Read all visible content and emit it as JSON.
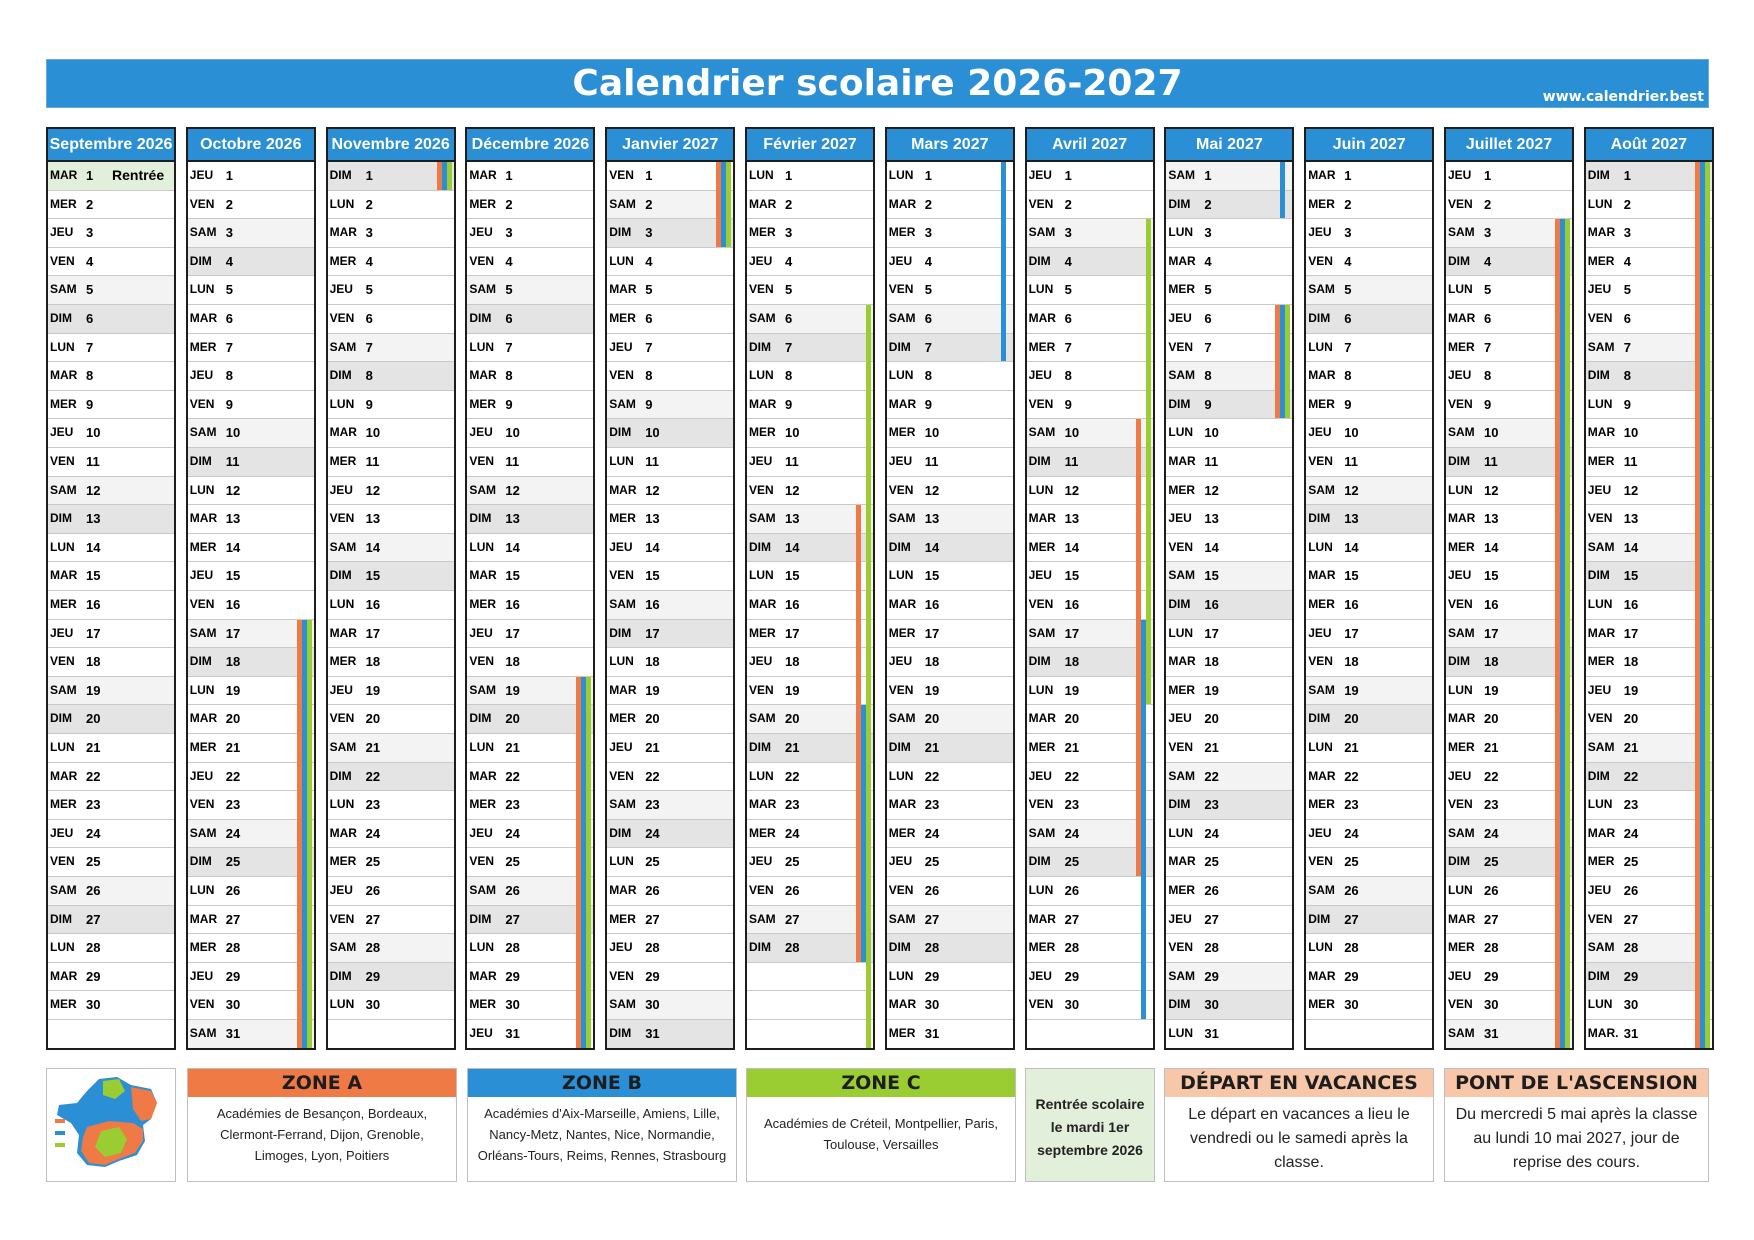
{
  "header": {
    "title": "Calendrier scolaire 2026-2027",
    "website": "www.calendrier.best"
  },
  "colors": {
    "zone_a": "#ef7a45",
    "zone_b": "#2a8fd5",
    "zone_c": "#9acd32",
    "header": "#2a8fd5",
    "vacances": "#f8c6a8",
    "rentree": "#e2efda"
  },
  "months": [
    {
      "name": "Septembre 2026",
      "start": 2,
      "days": 30,
      "note": {
        "day": 1,
        "text": "Rentrée"
      }
    },
    {
      "name": "Octobre 2026",
      "start": 4,
      "days": 31
    },
    {
      "name": "Novembre 2026",
      "start": 0,
      "days": 30
    },
    {
      "name": "Décembre 2026",
      "start": 2,
      "days": 31
    },
    {
      "name": "Janvier 2027",
      "start": 5,
      "days": 31
    },
    {
      "name": "Février 2027",
      "start": 1,
      "days": 28
    },
    {
      "name": "Mars 2027",
      "start": 1,
      "days": 31
    },
    {
      "name": "Avril 2027",
      "start": 4,
      "days": 30
    },
    {
      "name": "Mai 2027",
      "start": 6,
      "days": 31
    },
    {
      "name": "Juin 2027",
      "start": 2,
      "days": 30
    },
    {
      "name": "Juillet 2027",
      "start": 4,
      "days": 31
    },
    {
      "name": "Août 2027",
      "start": 0,
      "days": 31,
      "last_day_label": "MAR."
    }
  ],
  "day_abbr": [
    "DIM",
    "LUN",
    "MAR",
    "MER",
    "JEU",
    "VEN",
    "SAM"
  ],
  "holidays": [
    {
      "month": 1,
      "from": 17,
      "to": 31,
      "zones": [
        "a",
        "b",
        "c"
      ]
    },
    {
      "month": 2,
      "from": 1,
      "to": 1,
      "zones": [
        "a",
        "b",
        "c"
      ]
    },
    {
      "month": 3,
      "from": 19,
      "to": 31,
      "zones": [
        "a",
        "b",
        "c"
      ]
    },
    {
      "month": 4,
      "from": 1,
      "to": 3,
      "zones": [
        "a",
        "b",
        "c"
      ]
    },
    {
      "month": 5,
      "from": 6,
      "to": 31,
      "zones": [
        "c"
      ]
    },
    {
      "month": 5,
      "from": 13,
      "to": 28,
      "zones": [
        "a"
      ]
    },
    {
      "month": 5,
      "from": 20,
      "to": 28,
      "zones": [
        "b"
      ]
    },
    {
      "month": 6,
      "from": 1,
      "to": 7,
      "zones": [
        "b"
      ]
    },
    {
      "month": 7,
      "from": 3,
      "to": 19,
      "zones": [
        "c"
      ]
    },
    {
      "month": 7,
      "from": 10,
      "to": 25,
      "zones": [
        "a"
      ]
    },
    {
      "month": 7,
      "from": 17,
      "to": 30,
      "zones": [
        "b"
      ]
    },
    {
      "month": 8,
      "from": 1,
      "to": 2,
      "zones": [
        "b"
      ]
    },
    {
      "month": 8,
      "from": 6,
      "to": 9,
      "zones": [
        "a",
        "b",
        "c"
      ]
    },
    {
      "month": 10,
      "from": 3,
      "to": 31,
      "zones": [
        "a",
        "b",
        "c"
      ]
    },
    {
      "month": 11,
      "from": 1,
      "to": 31,
      "zones": [
        "a",
        "b",
        "c"
      ]
    }
  ],
  "zones": {
    "a": {
      "title": "ZONE A",
      "text": "Académies de Besançon, Bordeaux, Clermont-Ferrand, Dijon, Grenoble, Limoges, Lyon, Poitiers"
    },
    "b": {
      "title": "ZONE B",
      "text": "Académies d'Aix-Marseille, Amiens, Lille, Nancy-Metz, Nantes, Nice, Normandie, Orléans-Tours, Reims, Rennes, Strasbourg"
    },
    "c": {
      "title": "ZONE C",
      "text": "Académies de Créteil, Montpellier, Paris, Toulouse, Versailles"
    }
  },
  "rentree": {
    "text": "Rentrée scolaire le mardi 1er septembre 2026"
  },
  "depart": {
    "title": "DÉPART EN VACANCES",
    "text": "Le départ en vacances a lieu le vendredi ou le samedi après la classe."
  },
  "ascension": {
    "title": "PONT DE L'ASCENSION",
    "text": "Du mercredi 5 mai après la classe au lundi 10 mai 2027, jour de reprise des cours."
  }
}
